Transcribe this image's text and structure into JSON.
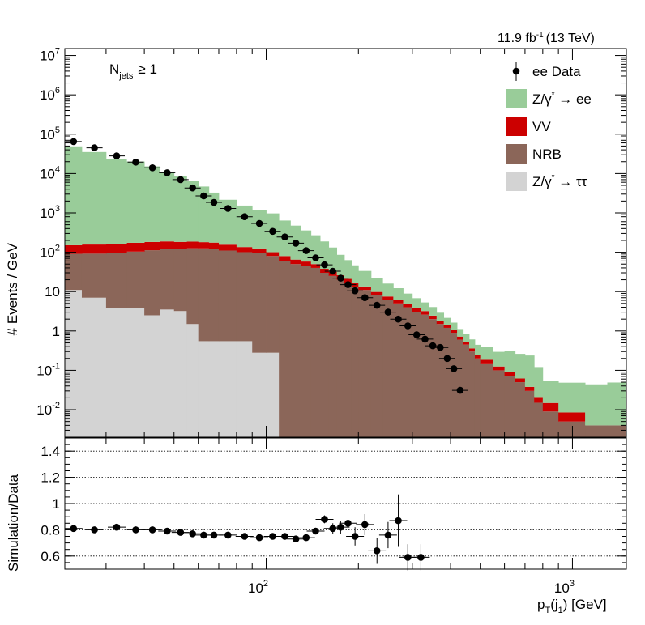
{
  "chart_data": {
    "type": "stacked histogram with ratio panel",
    "lumi_label": "11.9 fb",
    "lumi_exp": "-1",
    "lumi_energy": "(13 TeV)",
    "category_label": "N",
    "category_sub": "jets",
    "category_cond": "≥ 1",
    "ylabel": "# Events / GeV",
    "ratio_ylabel": "Simulation/Data",
    "xlabel_main": "p",
    "xlabel_sub": "T",
    "xlabel_obj": "(j",
    "xlabel_obj_sub": "1",
    "xlabel_unit": ") [GeV]",
    "x_scale": "log",
    "xlim": [
      22,
      1500
    ],
    "ylim": [
      0.002,
      15000000
    ],
    "ratio_ylim": [
      0.5,
      1.5
    ],
    "x_ticks": [
      {
        "value": 100,
        "base": "10",
        "exp": "2"
      },
      {
        "value": 1000,
        "base": "10",
        "exp": "3"
      }
    ],
    "y_ticks": [
      {
        "value": 10000000,
        "base": "10",
        "exp": "7"
      },
      {
        "value": 1000000,
        "base": "10",
        "exp": "6"
      },
      {
        "value": 100000,
        "base": "10",
        "exp": "5"
      },
      {
        "value": 10000,
        "base": "10",
        "exp": "4"
      },
      {
        "value": 1000,
        "base": "10",
        "exp": "3"
      },
      {
        "value": 100,
        "base": "10",
        "exp": "2"
      },
      {
        "value": 10,
        "base": "10",
        "exp": ""
      },
      {
        "value": 1,
        "base": "1",
        "exp": ""
      },
      {
        "value": 0.1,
        "base": "10",
        "exp": "-1"
      },
      {
        "value": 0.01,
        "base": "10",
        "exp": "-2"
      }
    ],
    "ratio_ticks": [
      "1.4",
      "1.2",
      "1",
      "0.8",
      "0.6"
    ],
    "legend": [
      {
        "label": "ee Data",
        "kind": "marker",
        "color": "#000000"
      },
      {
        "label": "Z/γ* → ee",
        "base": "Z/γ",
        "sup": "*",
        "rest": " → ee",
        "kind": "fill",
        "color": "#99cc99"
      },
      {
        "label": "VV",
        "kind": "fill",
        "color": "#cc0000"
      },
      {
        "label": "NRB",
        "kind": "fill",
        "color": "#8b6659"
      },
      {
        "label": "Z/γ* → ττ",
        "base": "Z/γ",
        "sup": "*",
        "rest": " → ττ",
        "kind": "fill",
        "color": "#d3d3d3"
      }
    ],
    "bin_edges": [
      22,
      25,
      30,
      35,
      40,
      45,
      50,
      55,
      60,
      65,
      70,
      80,
      90,
      100,
      110,
      120,
      130,
      140,
      150,
      160,
      170,
      180,
      190,
      200,
      220,
      240,
      260,
      280,
      300,
      320,
      340,
      360,
      380,
      400,
      420,
      440,
      460,
      480,
      500,
      550,
      600,
      650,
      700,
      750,
      800,
      900,
      1100,
      1300,
      1500
    ],
    "series": [
      {
        "name": "Z/γ* → ττ",
        "values": [
          11,
          7,
          3.8,
          3.8,
          2.5,
          3.5,
          3.2,
          1.5,
          0.55,
          0.55,
          0.55,
          0.55,
          0.28,
          0.28,
          0,
          0,
          0,
          0,
          0,
          0,
          0,
          0,
          0,
          0,
          0,
          0,
          0,
          0,
          0,
          0,
          0,
          0,
          0,
          0,
          0,
          0,
          0,
          0,
          0,
          0,
          0,
          0,
          0,
          0,
          0,
          0,
          0,
          0
        ]
      },
      {
        "name": "NRB",
        "values": [
          80,
          85,
          90,
          100,
          110,
          115,
          120,
          125,
          125,
          120,
          110,
          100,
          95,
          80,
          60,
          50,
          45,
          40,
          30,
          25,
          20,
          16,
          13,
          11,
          8,
          6,
          5,
          4,
          3,
          2.6,
          2,
          1.5,
          1.2,
          0.9,
          0.6,
          0.45,
          0.3,
          0.2,
          0.15,
          0.1,
          0.07,
          0.05,
          0.03,
          0.015,
          0.009,
          0.005,
          0.004,
          0.004
        ]
      },
      {
        "name": "VV",
        "values": [
          60,
          65,
          65,
          70,
          70,
          70,
          60,
          60,
          55,
          55,
          45,
          35,
          30,
          20,
          20,
          15,
          13,
          10,
          8,
          7,
          6,
          5,
          3.5,
          2.5,
          1.8,
          1.5,
          1.2,
          0.9,
          0.8,
          0.6,
          0.45,
          0.3,
          0.2,
          0.18,
          0.12,
          0.08,
          0.06,
          0.045,
          0.035,
          0.025,
          0.02,
          0.012,
          0.008,
          0.006,
          0.0058,
          0.0035,
          0.0,
          0.0
        ]
      },
      {
        "name": "Z/γ* → ee",
        "values": [
          49000,
          35000,
          23000,
          20000,
          15000,
          11000,
          8500,
          6200,
          4500,
          3100,
          2000,
          1400,
          1080,
          870,
          560,
          410,
          300,
          220,
          150,
          100,
          60,
          42,
          30,
          20,
          12,
          8.5,
          6,
          4,
          3,
          2.1,
          1.6,
          1.1,
          0.75,
          0.55,
          0.4,
          0.3,
          0.25,
          0.2,
          0.2,
          0.17,
          0.22,
          0.2,
          0.2,
          0.1,
          0.04,
          0.04,
          0.04,
          0.045
        ]
      }
    ],
    "data_points": [
      {
        "x": 23.5,
        "y": 65000
      },
      {
        "x": 27.5,
        "y": 45000
      },
      {
        "x": 32.5,
        "y": 28000
      },
      {
        "x": 37.5,
        "y": 19500
      },
      {
        "x": 42.5,
        "y": 14000
      },
      {
        "x": 47.5,
        "y": 10500
      },
      {
        "x": 52.5,
        "y": 7000
      },
      {
        "x": 57.5,
        "y": 4300
      },
      {
        "x": 62.5,
        "y": 2700
      },
      {
        "x": 67.5,
        "y": 1850
      },
      {
        "x": 75,
        "y": 1300
      },
      {
        "x": 85,
        "y": 800
      },
      {
        "x": 95,
        "y": 540
      },
      {
        "x": 105,
        "y": 340
      },
      {
        "x": 115,
        "y": 245
      },
      {
        "x": 125,
        "y": 170
      },
      {
        "x": 135,
        "y": 110
      },
      {
        "x": 145,
        "y": 72
      },
      {
        "x": 155,
        "y": 48
      },
      {
        "x": 165,
        "y": 33
      },
      {
        "x": 175,
        "y": 22
      },
      {
        "x": 185,
        "y": 15
      },
      {
        "x": 195,
        "y": 10.5
      },
      {
        "x": 210,
        "y": 7.0
      },
      {
        "x": 230,
        "y": 4.5
      },
      {
        "x": 250,
        "y": 3.0
      },
      {
        "x": 270,
        "y": 2.0
      },
      {
        "x": 290,
        "y": 1.35
      },
      {
        "x": 310,
        "y": 0.8
      },
      {
        "x": 330,
        "y": 0.62
      },
      {
        "x": 350,
        "y": 0.42
      },
      {
        "x": 370,
        "y": 0.38
      },
      {
        "x": 390,
        "y": 0.2
      },
      {
        "x": 410,
        "y": 0.11
      },
      {
        "x": 430,
        "y": 0.031
      }
    ],
    "data_points_note": "",
    "ratio_points": [
      0.81,
      0.8,
      0.82,
      0.8,
      0.8,
      0.79,
      0.78,
      0.77,
      0.76,
      0.76,
      0.76,
      0.75,
      0.74,
      0.75,
      0.75,
      0.73,
      0.74,
      0.79,
      0.88,
      0.81,
      0.82,
      0.85,
      0.75,
      0.84,
      0.64,
      0.76,
      0.87,
      0.59,
      0.59
    ],
    "ratio_x": [
      23.5,
      27.5,
      32.5,
      37.5,
      42.5,
      47.5,
      52.5,
      57.5,
      62.5,
      67.5,
      75,
      85,
      95,
      105,
      115,
      125,
      135,
      145,
      155,
      165,
      175,
      185,
      195,
      210,
      230,
      250,
      270,
      290,
      320
    ],
    "ratio_errors": [
      0.01,
      0.01,
      0.01,
      0.01,
      0.01,
      0.01,
      0.01,
      0.01,
      0.01,
      0.01,
      0.01,
      0.01,
      0.01,
      0.01,
      0.01,
      0.015,
      0.015,
      0.02,
      0.03,
      0.04,
      0.05,
      0.06,
      0.07,
      0.08,
      0.1,
      0.1,
      0.2,
      0.1,
      0.1
    ]
  }
}
